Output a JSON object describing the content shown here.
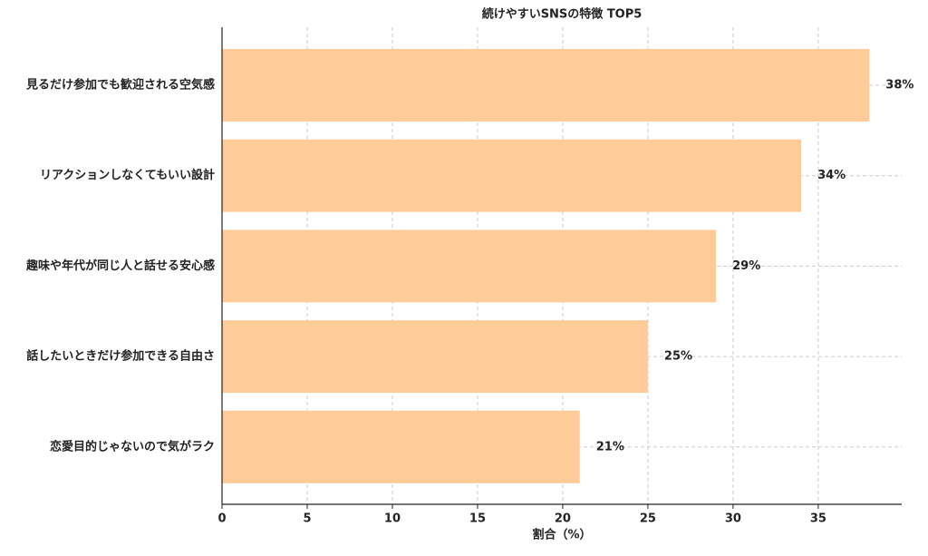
{
  "chart_data": {
    "type": "barh",
    "title": "続けやすいSNSの特徴 TOP5",
    "x_label": "割合（%）",
    "categories": [
      "見るだけ参加でも歓迎される空気感",
      "リアクションしなくてもいい設計",
      "趣味や年代が同じ人と話せる安心感",
      "話したいときだけ参加できる自由さ",
      "恋愛目的じゃないので気がラク"
    ],
    "values": [
      38,
      34,
      29,
      25,
      21
    ],
    "value_labels": [
      "38%",
      "34%",
      "29%",
      "25%",
      "21%"
    ],
    "color": "#ffcc99",
    "xlim": [
      0,
      39.9
    ],
    "xticks": [
      0,
      5,
      10,
      15,
      20,
      25,
      30,
      35
    ],
    "grid": true
  }
}
